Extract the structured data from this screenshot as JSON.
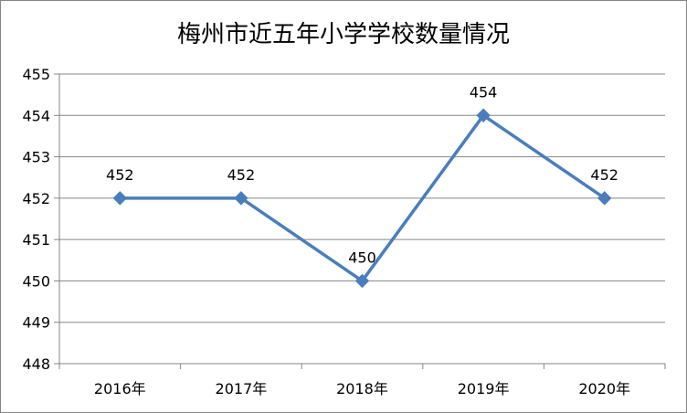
{
  "chart_data": {
    "type": "line",
    "title": "梅州市近五年小学学校数量情况",
    "categories": [
      "2016年",
      "2017年",
      "2018年",
      "2019年",
      "2020年"
    ],
    "series": [
      {
        "values": [
          452,
          452,
          450,
          454,
          452
        ],
        "color": "#4A7EBB"
      }
    ],
    "data_labels": [
      "452",
      "452",
      "450",
      "454",
      "452"
    ],
    "ylim": [
      448,
      455
    ],
    "yticks": [
      "448",
      "449",
      "450",
      "451",
      "452",
      "453",
      "454",
      "455"
    ],
    "grid": true,
    "legend": "none",
    "marker": "diamond"
  }
}
